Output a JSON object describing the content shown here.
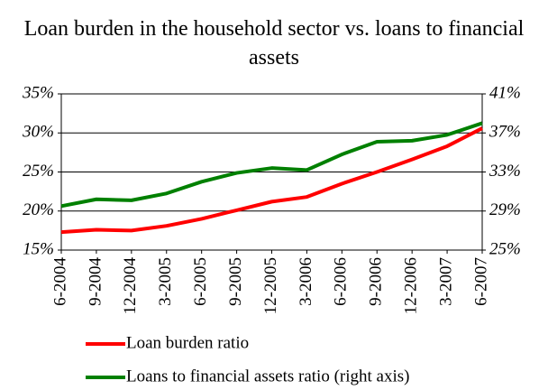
{
  "chart_data": {
    "type": "line",
    "title": "Loan burden in the household sector vs. loans to financial assets",
    "categories": [
      "6-2004",
      "9-2004",
      "12-2004",
      "3-2005",
      "6-2005",
      "9-2005",
      "12-2005",
      "3-2006",
      "6-2006",
      "9-2006",
      "12-2006",
      "3-2007",
      "6-2007"
    ],
    "series": [
      {
        "name": "Loan burden ratio",
        "color": "#ff0000",
        "values": [
          17.3,
          17.6,
          17.5,
          18.1,
          19.0,
          20.1,
          21.2,
          21.8,
          23.5,
          25.0,
          26.6,
          28.3,
          30.6
        ]
      },
      {
        "name": "Loans to financial assets ratio (right axis)",
        "color": "#008000",
        "axis": "y2",
        "values": [
          29.5,
          30.2,
          30.1,
          30.8,
          32.0,
          32.9,
          33.4,
          33.2,
          34.8,
          36.1,
          36.2,
          36.8,
          38.0
        ]
      }
    ],
    "ylim": [
      15,
      35
    ],
    "yticks": [
      {
        "value": 15,
        "label": "15%"
      },
      {
        "value": 20,
        "label": "20%"
      },
      {
        "value": 25,
        "label": "25%"
      },
      {
        "value": 30,
        "label": "30%"
      },
      {
        "value": 35,
        "label": "35%"
      }
    ],
    "y2lim": [
      25,
      41
    ],
    "y2ticks": [
      {
        "value": 25,
        "label": "25%"
      },
      {
        "value": 29,
        "label": "29%"
      },
      {
        "value": 33,
        "label": "33%"
      },
      {
        "value": 37,
        "label": "37%"
      },
      {
        "value": 41,
        "label": "41%"
      }
    ],
    "grid": true,
    "legend": "bottom"
  }
}
